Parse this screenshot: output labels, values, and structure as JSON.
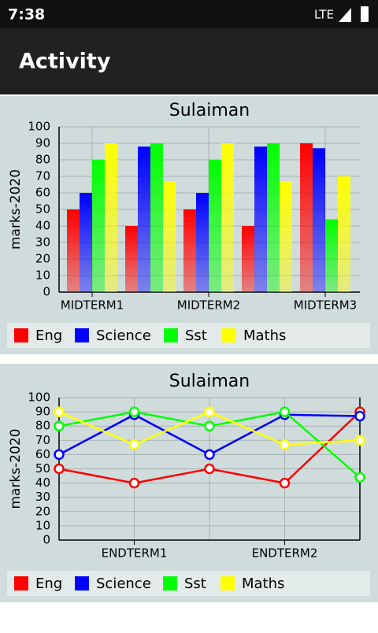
{
  "status_bar": {
    "time": "7:38",
    "network": "LTE"
  },
  "app_bar": {
    "title": "Activity"
  },
  "chart_data": [
    {
      "type": "bar",
      "title": "Sulaiman",
      "y_label": "marks-2020",
      "categories": [
        "MIDTERM1",
        null,
        "MIDTERM2",
        null,
        "MIDTERM3"
      ],
      "series": [
        {
          "name": "Eng",
          "color": "#ff0000",
          "values": [
            50,
            40,
            50,
            40,
            90
          ]
        },
        {
          "name": "Science",
          "color": "#0000ff",
          "values": [
            60,
            88,
            60,
            88,
            87
          ]
        },
        {
          "name": "Sst",
          "color": "#00ff00",
          "values": [
            80,
            90,
            80,
            90,
            44
          ]
        },
        {
          "name": "Maths",
          "color": "#ffff00",
          "values": [
            90,
            67,
            90,
            67,
            70
          ]
        }
      ],
      "ylim": [
        0,
        100
      ],
      "yticks": [
        0,
        10,
        20,
        30,
        40,
        50,
        60,
        70,
        80,
        90,
        100
      ],
      "grid": true,
      "legend": "bottom"
    },
    {
      "type": "line",
      "title": "Sulaiman",
      "y_label": "marks-2020",
      "categories": [
        null,
        "ENDTERM1",
        null,
        "ENDTERM2",
        null
      ],
      "series": [
        {
          "name": "Eng",
          "color": "#ff0000",
          "values": [
            50,
            40,
            50,
            40,
            90
          ]
        },
        {
          "name": "Science",
          "color": "#0000ff",
          "values": [
            60,
            88,
            60,
            88,
            87
          ]
        },
        {
          "name": "Sst",
          "color": "#00ff00",
          "values": [
            80,
            90,
            80,
            90,
            44
          ]
        },
        {
          "name": "Maths",
          "color": "#ffff00",
          "values": [
            90,
            67,
            90,
            67,
            70
          ]
        }
      ],
      "ylim": [
        0,
        100
      ],
      "yticks": [
        0,
        10,
        20,
        30,
        40,
        50,
        60,
        70,
        80,
        90,
        100
      ],
      "grid": true,
      "legend": "bottom"
    }
  ]
}
